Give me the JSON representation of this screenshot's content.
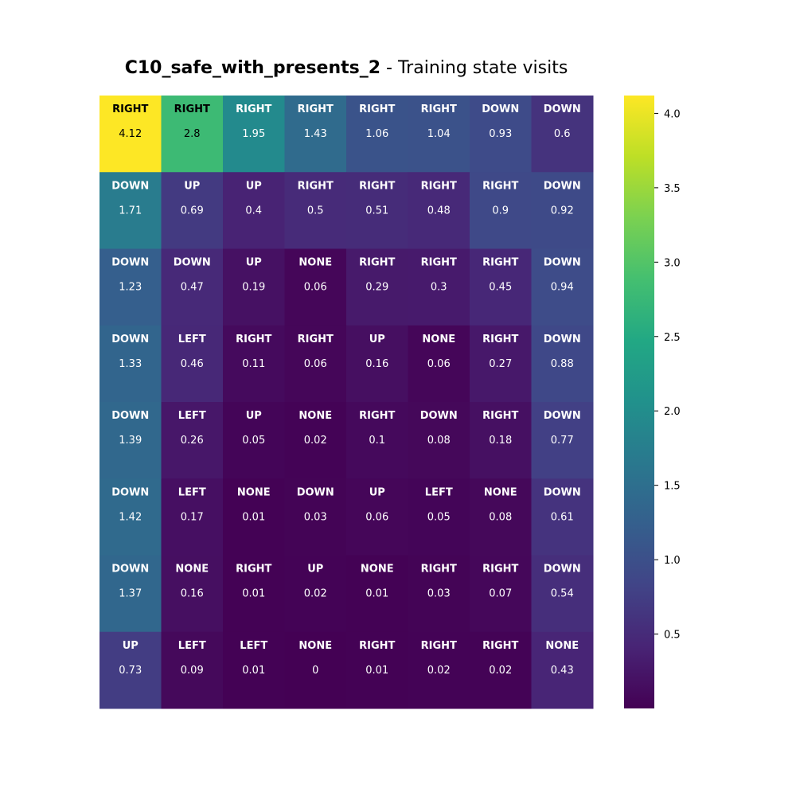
{
  "chart_data": {
    "type": "heatmap",
    "title_bold": "C10_safe_with_presents_2",
    "title_rest": " - Training state visits",
    "rows": 8,
    "cols": 8,
    "actions": [
      [
        "RIGHT",
        "RIGHT",
        "RIGHT",
        "RIGHT",
        "RIGHT",
        "RIGHT",
        "DOWN",
        "DOWN"
      ],
      [
        "DOWN",
        "UP",
        "UP",
        "RIGHT",
        "RIGHT",
        "RIGHT",
        "RIGHT",
        "DOWN"
      ],
      [
        "DOWN",
        "DOWN",
        "UP",
        "NONE",
        "RIGHT",
        "RIGHT",
        "RIGHT",
        "DOWN"
      ],
      [
        "DOWN",
        "LEFT",
        "RIGHT",
        "RIGHT",
        "UP",
        "NONE",
        "RIGHT",
        "DOWN"
      ],
      [
        "DOWN",
        "LEFT",
        "UP",
        "NONE",
        "RIGHT",
        "DOWN",
        "RIGHT",
        "DOWN"
      ],
      [
        "DOWN",
        "LEFT",
        "NONE",
        "DOWN",
        "UP",
        "LEFT",
        "NONE",
        "DOWN"
      ],
      [
        "DOWN",
        "NONE",
        "RIGHT",
        "UP",
        "NONE",
        "RIGHT",
        "RIGHT",
        "DOWN"
      ],
      [
        "UP",
        "LEFT",
        "LEFT",
        "NONE",
        "RIGHT",
        "RIGHT",
        "RIGHT",
        "NONE"
      ]
    ],
    "values": [
      [
        4.12,
        2.8,
        1.95,
        1.43,
        1.06,
        1.04,
        0.93,
        0.6
      ],
      [
        1.71,
        0.69,
        0.4,
        0.5,
        0.51,
        0.48,
        0.9,
        0.92
      ],
      [
        1.23,
        0.47,
        0.19,
        0.06,
        0.29,
        0.3,
        0.45,
        0.94
      ],
      [
        1.33,
        0.46,
        0.11,
        0.06,
        0.16,
        0.06,
        0.27,
        0.88
      ],
      [
        1.39,
        0.26,
        0.05,
        0.02,
        0.1,
        0.08,
        0.18,
        0.77
      ],
      [
        1.42,
        0.17,
        0.01,
        0.03,
        0.06,
        0.05,
        0.08,
        0.61
      ],
      [
        1.37,
        0.16,
        0.01,
        0.02,
        0.01,
        0.03,
        0.07,
        0.54
      ],
      [
        0.73,
        0.09,
        0.01,
        0,
        0.01,
        0.02,
        0.02,
        0.43
      ]
    ],
    "colorbar": {
      "colormap": "viridis",
      "min": 0,
      "max": 4.12,
      "ticks": [
        0.5,
        1.0,
        1.5,
        2.0,
        2.5,
        3.0,
        3.5,
        4.0
      ],
      "tick_labels": [
        "0.5",
        "1.0",
        "1.5",
        "2.0",
        "2.5",
        "3.0",
        "3.5",
        "4.0"
      ]
    }
  }
}
